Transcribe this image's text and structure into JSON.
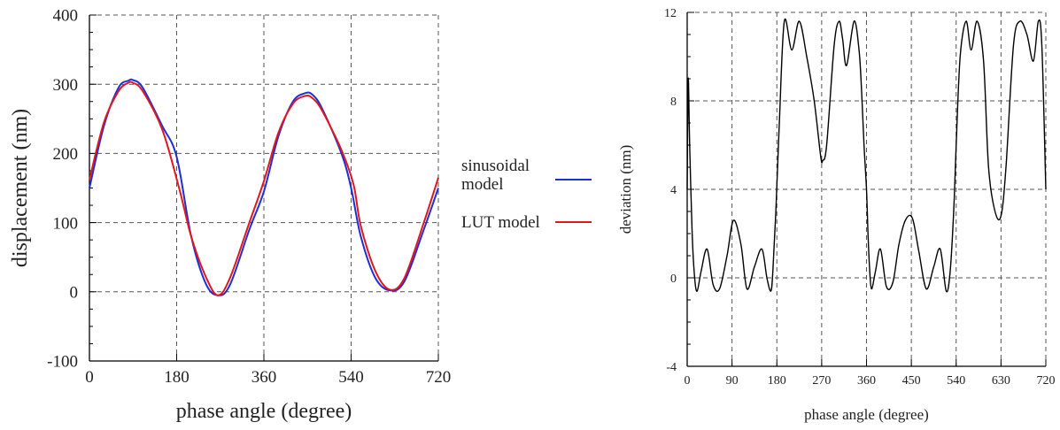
{
  "chart_data": [
    {
      "type": "line",
      "title": "",
      "xlabel": "phase angle (degree)",
      "ylabel": "displacement (nm)",
      "xlim": [
        0,
        720
      ],
      "ylim": [
        -100,
        400
      ],
      "xticks": [
        "0",
        "180",
        "360",
        "540",
        "720"
      ],
      "yticks": [
        "-100",
        "0",
        "100",
        "200",
        "300",
        "400"
      ],
      "grid": true,
      "legend_placement": "right",
      "series": [
        {
          "name": "sinusoidal model",
          "color": "#1f2fd6",
          "x": [
            0,
            30,
            60,
            80,
            90,
            110,
            150,
            180,
            210,
            240,
            265,
            290,
            330,
            360,
            390,
            420,
            445,
            460,
            480,
            520,
            540,
            560,
            590,
            620,
            650,
            690,
            720
          ],
          "y": [
            150,
            240,
            295,
            305,
            306,
            295,
            240,
            195,
            80,
            12,
            -5,
            10,
            90,
            145,
            225,
            275,
            287,
            285,
            265,
            200,
            150,
            80,
            20,
            2,
            15,
            90,
            150
          ]
        },
        {
          "name": "LUT model",
          "color": "#e0171f",
          "x": [
            0,
            30,
            60,
            80,
            90,
            110,
            150,
            185,
            210,
            240,
            265,
            290,
            330,
            360,
            390,
            420,
            445,
            460,
            480,
            520,
            545,
            560,
            590,
            620,
            650,
            690,
            720
          ],
          "y": [
            162,
            245,
            290,
            302,
            302,
            290,
            235,
            150,
            80,
            22,
            -5,
            20,
            100,
            160,
            230,
            272,
            283,
            280,
            262,
            205,
            155,
            95,
            30,
            3,
            20,
            100,
            165
          ]
        }
      ]
    },
    {
      "type": "line",
      "title": "",
      "xlabel": "phase angle (degree)",
      "ylabel": "deviation (nm)",
      "xlim": [
        0,
        720
      ],
      "ylim": [
        -4,
        12
      ],
      "xticks": [
        "0",
        "90",
        "180",
        "270",
        "360",
        "450",
        "540",
        "630",
        "720"
      ],
      "yticks": [
        "-4",
        "0",
        "4",
        "8",
        "12"
      ],
      "grid": true,
      "series": [
        {
          "color": "#000000",
          "x": [
            0,
            2,
            5,
            10,
            15,
            20,
            28,
            40,
            52,
            65,
            80,
            93,
            108,
            120,
            135,
            150,
            160,
            168,
            172,
            178,
            185,
            195,
            210,
            225,
            240,
            255,
            268,
            272,
            280,
            295,
            305,
            312,
            320,
            335,
            345,
            350,
            355,
            360,
            363,
            366,
            370,
            378,
            388,
            400,
            413,
            425,
            438,
            452,
            465,
            480,
            495,
            508,
            520,
            528,
            535,
            540,
            548,
            560,
            570,
            582,
            595,
            605,
            618,
            630,
            640,
            655,
            668,
            682,
            695,
            705,
            712,
            720
          ],
          "y": [
            4.0,
            9.0,
            6.0,
            2.0,
            0.0,
            -0.6,
            0.3,
            1.3,
            -0.3,
            -0.5,
            1.0,
            2.6,
            1.5,
            -0.5,
            0.5,
            1.3,
            0.0,
            -0.6,
            0.3,
            3.0,
            7.0,
            11.6,
            10.3,
            11.6,
            10.0,
            8.0,
            5.5,
            5.3,
            6.0,
            10.5,
            11.6,
            10.8,
            9.6,
            11.6,
            10.3,
            8.5,
            6.0,
            4.0,
            2.0,
            0.5,
            -0.5,
            0.3,
            1.3,
            -0.4,
            -0.2,
            1.5,
            2.6,
            2.7,
            1.2,
            -0.5,
            0.5,
            1.3,
            -0.6,
            0.3,
            3.0,
            6.0,
            10.0,
            11.6,
            10.3,
            11.6,
            9.8,
            5.0,
            3.0,
            2.8,
            5.0,
            10.5,
            11.6,
            11.0,
            9.8,
            11.6,
            10.5,
            4.0
          ]
        }
      ]
    }
  ]
}
